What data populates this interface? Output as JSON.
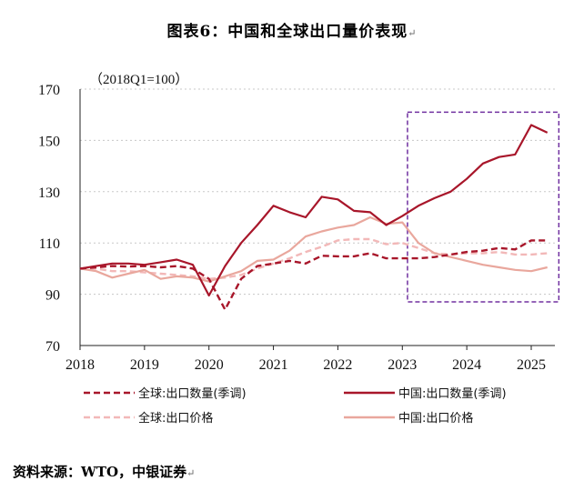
{
  "title": "图表6：中国和全球出口量价表现",
  "return_mark": "↵",
  "source": "资料来源：WTO，中银证券",
  "chart_data": {
    "type": "line",
    "unit_label": "（2018Q1=100）",
    "ylim": [
      70,
      170
    ],
    "yticks": [
      70,
      90,
      110,
      130,
      150,
      170
    ],
    "xlim": [
      2018.0,
      2025.4
    ],
    "xticks": [
      2018,
      2019,
      2020,
      2021,
      2022,
      2023,
      2024,
      2025
    ],
    "highlight_range": {
      "x": [
        2023.08,
        2025.4
      ],
      "y": [
        87,
        161
      ]
    },
    "series": [
      {
        "name": "全球:出口数量(季调)",
        "color": "#a8162a",
        "style": "dashed",
        "x": [
          2018.0,
          2018.25,
          2018.5,
          2018.75,
          2019.0,
          2019.25,
          2019.5,
          2019.75,
          2020.0,
          2020.25,
          2020.5,
          2020.75,
          2021.0,
          2021.25,
          2021.5,
          2021.75,
          2022.0,
          2022.25,
          2022.5,
          2022.75,
          2023.0,
          2023.25,
          2023.5,
          2023.75,
          2024.0,
          2024.25,
          2024.5,
          2024.75,
          2025.0,
          2025.25
        ],
        "values": [
          100,
          100.5,
          101,
          100.8,
          101,
          100.5,
          101,
          100,
          96,
          84,
          96,
          101,
          102,
          103,
          102,
          105,
          104.8,
          104.8,
          106,
          104,
          104,
          104,
          104.5,
          105.5,
          106.5,
          107,
          108,
          107.5,
          111,
          111
        ]
      },
      {
        "name": "中国:出口数量(季调)",
        "color": "#a8162a",
        "style": "solid",
        "x": [
          2018.0,
          2018.25,
          2018.5,
          2018.75,
          2019.0,
          2019.25,
          2019.5,
          2019.75,
          2020.0,
          2020.25,
          2020.5,
          2020.75,
          2021.0,
          2021.25,
          2021.5,
          2021.75,
          2022.0,
          2022.25,
          2022.5,
          2022.75,
          2023.0,
          2023.25,
          2023.5,
          2023.75,
          2024.0,
          2024.25,
          2024.5,
          2024.75,
          2025.0,
          2025.25
        ],
        "values": [
          100,
          101,
          102,
          102,
          101.5,
          102.5,
          103.5,
          101.5,
          89.5,
          101,
          110,
          117,
          124.5,
          122,
          120,
          128,
          127,
          122.5,
          122,
          117,
          120.5,
          124.5,
          127.5,
          130,
          135,
          141,
          143.5,
          144.5,
          156,
          153
        ]
      },
      {
        "name": "全球:出口价格",
        "color": "#f2b8b8",
        "style": "dashed",
        "x": [
          2018.0,
          2018.25,
          2018.5,
          2018.75,
          2019.0,
          2019.25,
          2019.5,
          2019.75,
          2020.0,
          2020.25,
          2020.5,
          2020.75,
          2021.0,
          2021.25,
          2021.5,
          2021.75,
          2022.0,
          2022.25,
          2022.5,
          2022.75,
          2023.0,
          2023.25,
          2023.5,
          2023.75,
          2024.0,
          2024.25,
          2024.5,
          2024.75,
          2025.0,
          2025.25
        ],
        "values": [
          100,
          100,
          99,
          99,
          98.5,
          98,
          97.5,
          97,
          96,
          96.5,
          97.5,
          100,
          102,
          104,
          106.5,
          108.5,
          111,
          111.5,
          111.5,
          109.5,
          110,
          108,
          106,
          105.5,
          106,
          106,
          106.5,
          105.5,
          105.5,
          106
        ]
      },
      {
        "name": "中国:出口价格",
        "color": "#e9a79d",
        "style": "solid",
        "x": [
          2018.0,
          2018.25,
          2018.5,
          2018.75,
          2019.0,
          2019.25,
          2019.5,
          2019.75,
          2020.0,
          2020.25,
          2020.5,
          2020.75,
          2021.0,
          2021.25,
          2021.5,
          2021.75,
          2022.0,
          2022.25,
          2022.5,
          2022.75,
          2023.0,
          2023.25,
          2023.5,
          2023.75,
          2024.0,
          2024.25,
          2024.5,
          2024.75,
          2025.0,
          2025.25
        ],
        "values": [
          100,
          99,
          96.5,
          98,
          99.5,
          96,
          97,
          96.5,
          95,
          97,
          99,
          103,
          103.5,
          107,
          112.5,
          114.5,
          116,
          117,
          120,
          117.5,
          118,
          110,
          106,
          104.5,
          103,
          101.5,
          100.5,
          99.5,
          99,
          100.5
        ]
      }
    ]
  }
}
